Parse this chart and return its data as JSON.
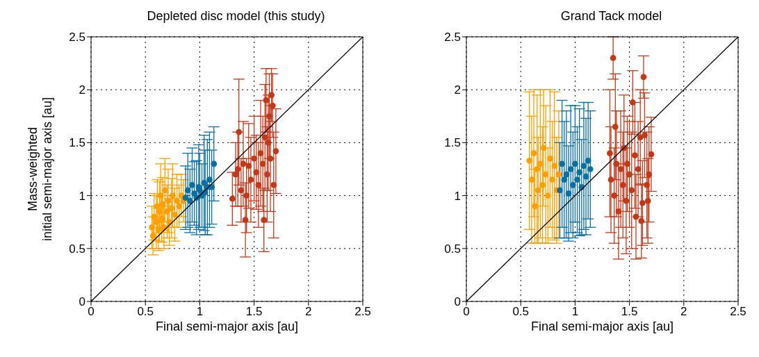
{
  "chart_data": [
    {
      "type": "scatter",
      "title": "Depleted disc model (this study)",
      "xlabel": "Final semi-major axis [au]",
      "ylabel": "Mass-weighted\ninitial semi-major axis [au]",
      "xlim": [
        0,
        2.5
      ],
      "ylim": [
        0,
        2.5
      ],
      "xticks": [
        0,
        0.5,
        1,
        1.5,
        2,
        2.5
      ],
      "yticks": [
        0,
        0.5,
        1,
        1.5,
        2,
        2.5
      ],
      "grid": true,
      "marker": "circle",
      "series": [
        {
          "color": "#ff9f00",
          "x": [
            0.56,
            0.57,
            0.58,
            0.6,
            0.61,
            0.62,
            0.63,
            0.64,
            0.65,
            0.66,
            0.67,
            0.68,
            0.7,
            0.71,
            0.72,
            0.74,
            0.75,
            0.77,
            0.79,
            0.81,
            0.83,
            0.85
          ],
          "values": [
            0.7,
            0.62,
            0.8,
            0.75,
            0.9,
            0.68,
            0.85,
            1.0,
            0.78,
            0.92,
            0.7,
            1.05,
            0.85,
            0.95,
            0.75,
            0.88,
            1.0,
            0.82,
            0.95,
            0.9,
            1.0,
            0.95
          ],
          "errors": [
            0.2,
            0.18,
            0.22,
            0.25,
            0.25,
            0.2,
            0.28,
            0.3,
            0.22,
            0.25,
            0.2,
            0.3,
            0.25,
            0.3,
            0.22,
            0.28,
            0.3,
            0.25,
            0.25,
            0.2,
            0.2,
            0.2
          ]
        },
        {
          "color": "#0a6fa0",
          "x": [
            0.87,
            0.89,
            0.91,
            0.93,
            0.95,
            0.97,
            0.99,
            1.0,
            1.02,
            1.04,
            1.05,
            1.07,
            1.09,
            1.11,
            1.13
          ],
          "values": [
            0.98,
            1.05,
            0.95,
            1.1,
            1.02,
            0.98,
            1.08,
            1.05,
            1.0,
            1.12,
            1.03,
            1.08,
            1.15,
            1.08,
            1.3
          ],
          "errors": [
            0.3,
            0.35,
            0.3,
            0.35,
            0.3,
            0.35,
            0.4,
            0.35,
            0.3,
            0.45,
            0.4,
            0.45,
            0.45,
            0.35,
            0.35
          ]
        },
        {
          "color": "#c0391b",
          "x": [
            1.3,
            1.33,
            1.35,
            1.36,
            1.38,
            1.4,
            1.42,
            1.43,
            1.45,
            1.47,
            1.5,
            1.52,
            1.54,
            1.56,
            1.58,
            1.59,
            1.6,
            1.61,
            1.62,
            1.63,
            1.64,
            1.65,
            1.66,
            1.67,
            1.68,
            1.7
          ],
          "values": [
            0.97,
            1.2,
            1.25,
            1.6,
            1.05,
            1.3,
            0.77,
            1.0,
            1.28,
            1.15,
            1.35,
            1.22,
            1.1,
            1.4,
            1.3,
            0.77,
            1.55,
            1.9,
            1.2,
            1.5,
            1.75,
            1.35,
            1.95,
            1.85,
            1.1,
            1.42
          ],
          "errors": [
            0.25,
            0.3,
            0.35,
            0.5,
            0.3,
            0.4,
            0.35,
            0.35,
            0.4,
            0.4,
            0.4,
            0.35,
            0.4,
            0.5,
            0.45,
            0.3,
            0.5,
            0.3,
            0.45,
            0.45,
            0.4,
            0.5,
            0.25,
            0.3,
            0.5,
            0.4
          ]
        },
        {
          "type": "line",
          "marker": "none",
          "color": "#000000",
          "x": [
            0,
            2.5
          ],
          "values": [
            0,
            2.5
          ]
        }
      ]
    },
    {
      "type": "scatter",
      "title": "Grand Tack model",
      "xlabel": "Final semi-major axis [au]",
      "xlim": [
        0,
        2.5
      ],
      "ylim": [
        0,
        2.5
      ],
      "xticks": [
        0,
        0.5,
        1,
        1.5,
        2,
        2.5
      ],
      "yticks": [
        0,
        0.5,
        1,
        1.5,
        2,
        2.5
      ],
      "grid": true,
      "marker": "circle",
      "series": [
        {
          "color": "#ff9f00",
          "x": [
            0.58,
            0.6,
            0.62,
            0.63,
            0.65,
            0.66,
            0.68,
            0.7,
            0.71,
            0.73,
            0.75,
            0.77,
            0.79,
            0.81,
            0.83,
            0.85
          ],
          "values": [
            1.33,
            1.15,
            1.4,
            0.9,
            1.25,
            1.05,
            1.3,
            1.1,
            1.45,
            1.2,
            1.0,
            1.35,
            1.15,
            1.28,
            1.05,
            1.2
          ],
          "errors": [
            0.65,
            0.6,
            0.6,
            0.35,
            0.7,
            0.5,
            0.7,
            0.55,
            0.55,
            0.65,
            0.45,
            0.65,
            0.55,
            0.7,
            0.5,
            0.6
          ]
        },
        {
          "color": "#0a6fa0",
          "x": [
            0.86,
            0.88,
            0.9,
            0.92,
            0.94,
            0.96,
            0.98,
            1.0,
            1.02,
            1.04,
            1.06,
            1.08,
            1.1,
            1.12,
            1.14
          ],
          "values": [
            1.05,
            1.3,
            1.15,
            1.2,
            1.02,
            1.25,
            1.1,
            1.3,
            1.15,
            1.22,
            1.08,
            1.28,
            1.18,
            1.33,
            1.25
          ],
          "errors": [
            0.45,
            0.6,
            0.55,
            0.6,
            0.45,
            0.6,
            0.5,
            0.55,
            0.5,
            0.6,
            0.45,
            0.6,
            0.55,
            0.55,
            0.55
          ]
        },
        {
          "color": "#c0391b",
          "x": [
            1.32,
            1.33,
            1.35,
            1.36,
            1.37,
            1.38,
            1.4,
            1.42,
            1.44,
            1.45,
            1.47,
            1.48,
            1.5,
            1.52,
            1.53,
            1.55,
            1.56,
            1.58,
            1.6,
            1.61,
            1.62,
            1.63,
            1.64,
            1.66,
            1.67,
            1.68,
            1.7
          ],
          "values": [
            1.4,
            1.15,
            2.3,
            1.0,
            1.65,
            1.3,
            0.85,
            1.25,
            1.1,
            1.45,
            0.95,
            1.3,
            1.2,
            1.05,
            1.88,
            1.38,
            0.8,
            1.25,
            1.55,
            0.76,
            0.93,
            2.12,
            1.57,
            1.1,
            0.95,
            1.2,
            1.39
          ],
          "errors": [
            0.6,
            0.5,
            0.2,
            0.45,
            0.5,
            0.5,
            0.45,
            0.55,
            0.5,
            0.5,
            0.5,
            0.45,
            0.5,
            0.55,
            0.3,
            0.5,
            0.4,
            0.45,
            0.45,
            0.35,
            0.4,
            0.2,
            0.4,
            0.5,
            0.4,
            0.45,
            0.35
          ]
        },
        {
          "type": "line",
          "marker": "none",
          "color": "#000000",
          "x": [
            0,
            2.5
          ],
          "values": [
            0,
            2.5
          ]
        }
      ]
    }
  ]
}
